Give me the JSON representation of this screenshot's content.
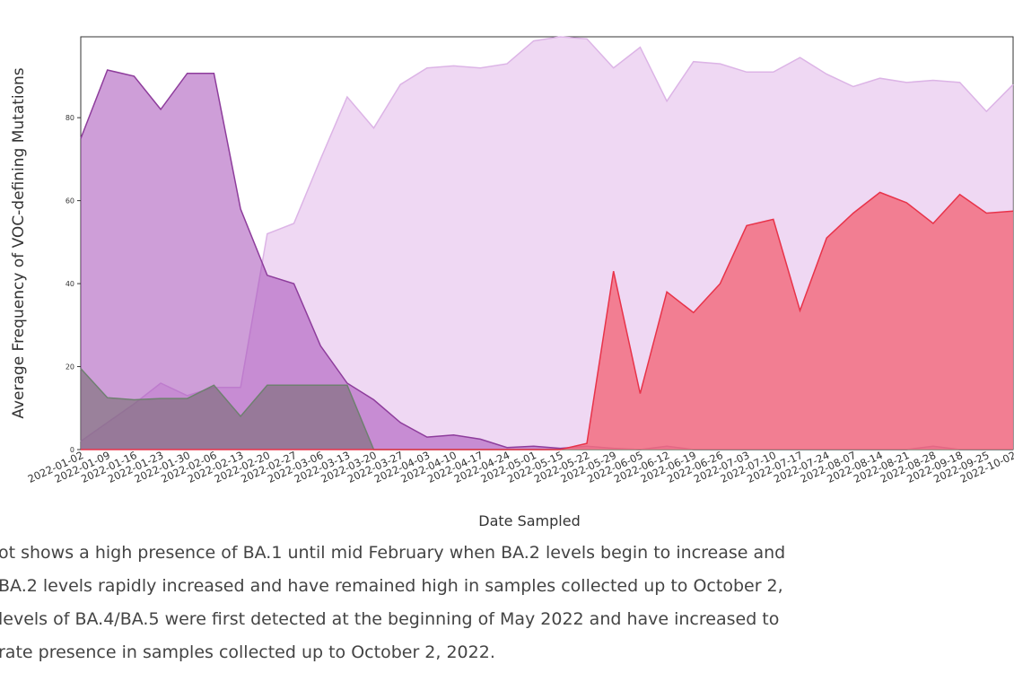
{
  "chart_data": {
    "type": "area",
    "xlabel": "Date Sampled",
    "ylabel": "Average Frequency of VOC-defining Mutations",
    "categories": [
      "2022-01-02",
      "2022-01-09",
      "2022-01-16",
      "2022-01-23",
      "2022-01-30",
      "2022-02-06",
      "2022-02-13",
      "2022-02-20",
      "2022-02-27",
      "2022-03-06",
      "2022-03-13",
      "2022-03-20",
      "2022-03-27",
      "2022-04-03",
      "2022-04-10",
      "2022-04-17",
      "2022-04-24",
      "2022-05-01",
      "2022-05-15",
      "2022-05-22",
      "2022-05-29",
      "2022-06-05",
      "2022-06-12",
      "2022-06-19",
      "2022-06-26",
      "2022-07-03",
      "2022-07-10",
      "2022-07-17",
      "2022-07-24",
      "2022-08-07",
      "2022-08-14",
      "2022-08-21",
      "2022-08-28",
      "2022-09-18",
      "2022-09-25",
      "2022-10-02"
    ],
    "series": [
      {
        "color": "#e8c8ee",
        "edge": "#dcb4e6",
        "opacity": 0.7,
        "values": [
          2,
          6.5,
          11,
          16,
          13,
          15,
          15,
          52,
          54.5,
          70,
          85,
          77.5,
          88,
          92,
          92.5,
          92,
          93,
          98.5,
          99.5,
          99,
          92,
          97,
          84,
          93.5,
          93,
          91,
          91,
          94.5,
          90.5,
          87.5,
          89.5,
          88.5,
          89,
          88.5,
          81.5,
          88
        ]
      },
      {
        "color": "#a64fb8",
        "edge": "#8e3d9c",
        "opacity": 0.55,
        "values": [
          75,
          91.5,
          90,
          82,
          90.7,
          90.7,
          58,
          42,
          40,
          25,
          16,
          12,
          6.5,
          3,
          3.5,
          2.5,
          0.5,
          0.8,
          0.3,
          0.8,
          0.3,
          0,
          0.8,
          0,
          0,
          0,
          0,
          0,
          0,
          0,
          0,
          0,
          0.8,
          0,
          0,
          0
        ]
      },
      {
        "color": "#6f6a6a",
        "edge": "#6f8070",
        "opacity": 0.55,
        "values": [
          19.5,
          12.5,
          12,
          12.3,
          12.3,
          15.5,
          8,
          15.5,
          15.5,
          15.5,
          15.5,
          0,
          0,
          0,
          0,
          0,
          0,
          0,
          0,
          0,
          0,
          0,
          0,
          0,
          0,
          0,
          0,
          0,
          0,
          0,
          0,
          0,
          0,
          0,
          0,
          0
        ]
      },
      {
        "color": "#f26f80",
        "edge": "#e8334a",
        "opacity": 0.85,
        "values": [
          0,
          0,
          0,
          0,
          0,
          0,
          0,
          0,
          0,
          0,
          0,
          0,
          0,
          0,
          0,
          0,
          0,
          0,
          0,
          1.5,
          43,
          13.5,
          38,
          33,
          40,
          54,
          55.5,
          33.5,
          51,
          57,
          62,
          59.5,
          54.5,
          61.5,
          57,
          57.5
        ]
      }
    ],
    "ylim": [
      0,
      99.5
    ],
    "yticks": [
      0,
      20,
      40,
      60,
      80
    ]
  },
  "description": [
    "ot shows a high presence of BA.1 until mid February when BA.2 levels begin to increase and",
    "BA.2 levels rapidly increased and have remained high in samples collected up to October 2,",
    "levels of BA.4/BA.5 were first detected at the beginning of May 2022 and have increased to",
    "rate presence in samples collected up to October 2, 2022."
  ]
}
